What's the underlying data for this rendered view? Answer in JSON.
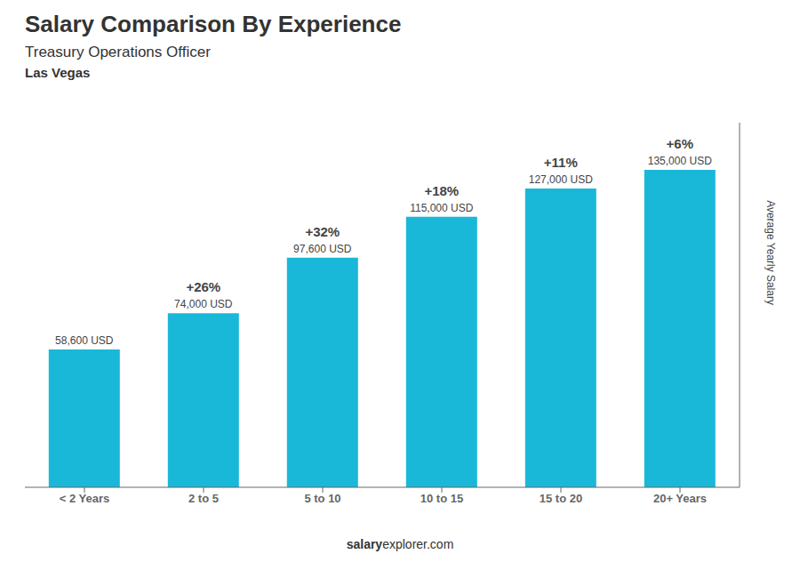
{
  "chart_data": {
    "type": "bar",
    "title": "Salary Comparison By Experience",
    "subtitle": "Treasury Operations Officer",
    "city": "Las Vegas",
    "categories": [
      "< 2 Years",
      "2 to 5",
      "5 to 10",
      "10 to 15",
      "15 to 20",
      "20+ Years"
    ],
    "values": [
      58600,
      74000,
      97600,
      115000,
      127000,
      135000
    ],
    "value_labels": [
      "58,600 USD",
      "74,000 USD",
      "97,600 USD",
      "115,000 USD",
      "127,000 USD",
      "135,000 USD"
    ],
    "data_labels": true,
    "annotations": [
      "+26%",
      "+32%",
      "+18%",
      "+11%",
      "+6%"
    ],
    "ylabel": "Average Yearly Salary",
    "footer": [
      "salary",
      "explorer.com"
    ],
    "color": "#1ab8d8",
    "ylim": [
      0,
      155000
    ],
    "tick_labels": "x",
    "grid": false
  }
}
